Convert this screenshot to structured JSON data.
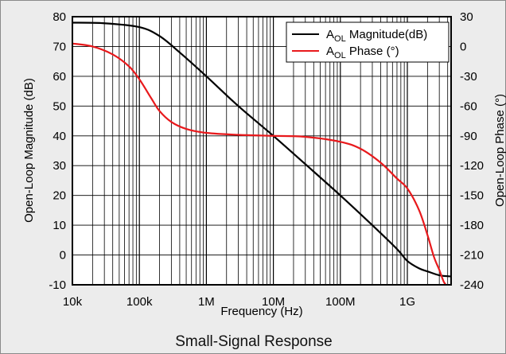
{
  "chart_data": {
    "type": "line",
    "caption": "Small-Signal Response",
    "xlabel": "Frequency (Hz)",
    "ylabel_left": "Open-Loop Magnitude (dB)",
    "ylabel_right": "Open-Loop Phase (°)",
    "x_scale": "log",
    "xlim": [
      10000,
      4500000000
    ],
    "ylim_left": [
      -10,
      80
    ],
    "ylim_right": [
      -240,
      30
    ],
    "grid": true,
    "legend_position": "top-right",
    "x_ticks": [
      {
        "value": 10000,
        "label": "10k"
      },
      {
        "value": 100000,
        "label": "100k"
      },
      {
        "value": 1000000,
        "label": "1M"
      },
      {
        "value": 10000000,
        "label": "10M"
      },
      {
        "value": 100000000,
        "label": "100M"
      },
      {
        "value": 1000000000,
        "label": "1G"
      }
    ],
    "y_ticks_left": [
      -10,
      0,
      10,
      20,
      30,
      40,
      50,
      60,
      70,
      80
    ],
    "y_ticks_right": [
      -240,
      -210,
      -180,
      -150,
      -120,
      -90,
      -60,
      -30,
      0,
      30
    ],
    "series": [
      {
        "name_main": "A",
        "name_sub": "OL",
        "name_rest": " Magnitude(dB)",
        "color": "#000000",
        "axis": "left",
        "x": [
          10000,
          30000,
          100000,
          200000,
          400000,
          1000000,
          3000000,
          10000000,
          30000000,
          100000000,
          300000000,
          700000000,
          1000000000,
          1500000000,
          2000000000,
          3000000000,
          4500000000
        ],
        "y": [
          78,
          77.8,
          76.5,
          73.5,
          68,
          60,
          50,
          40,
          30.5,
          20,
          10,
          2,
          -2,
          -4.5,
          -5.5,
          -6.8,
          -7.2
        ]
      },
      {
        "name_main": "A",
        "name_sub": "OL",
        "name_rest": " Phase (°)",
        "color": "#e8191c",
        "axis": "right",
        "x": [
          10000,
          20000,
          40000,
          70000,
          100000,
          150000,
          200000,
          300000,
          500000,
          1000000,
          3000000,
          10000000,
          30000000,
          100000000,
          200000000,
          400000000,
          700000000,
          1000000000,
          1500000000,
          2000000000,
          2500000000,
          3000000000,
          3500000000,
          4000000000,
          4500000000
        ],
        "y": [
          3,
          0,
          -8,
          -20,
          -33,
          -52,
          -65,
          -76,
          -83,
          -87,
          -89,
          -90,
          -91,
          -96,
          -103,
          -117,
          -133,
          -143,
          -165,
          -190,
          -212,
          -225,
          -237,
          -242,
          -246
        ]
      }
    ]
  }
}
